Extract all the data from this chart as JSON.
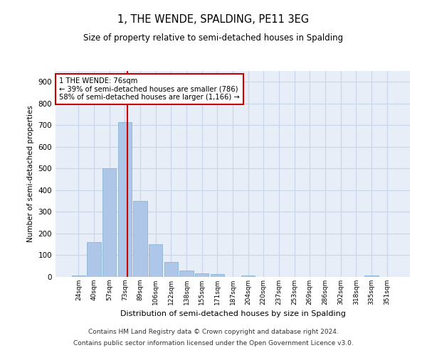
{
  "title": "1, THE WENDE, SPALDING, PE11 3EG",
  "subtitle": "Size of property relative to semi-detached houses in Spalding",
  "xlabel": "Distribution of semi-detached houses by size in Spalding",
  "ylabel": "Number of semi-detached properties",
  "bins": [
    "24sqm",
    "40sqm",
    "57sqm",
    "73sqm",
    "89sqm",
    "106sqm",
    "122sqm",
    "138sqm",
    "155sqm",
    "171sqm",
    "187sqm",
    "204sqm",
    "220sqm",
    "237sqm",
    "253sqm",
    "269sqm",
    "286sqm",
    "302sqm",
    "318sqm",
    "335sqm",
    "351sqm"
  ],
  "values": [
    8,
    160,
    500,
    715,
    350,
    150,
    70,
    28,
    18,
    13,
    0,
    8,
    0,
    0,
    0,
    0,
    0,
    0,
    0,
    8,
    0
  ],
  "bar_color": "#aec6e8",
  "bar_edge_color": "#7bafd4",
  "pct_smaller": 39,
  "n_smaller": 786,
  "pct_larger": 58,
  "n_larger": 1166,
  "vline_color": "#cc0000",
  "annotation_box_edge": "#cc0000",
  "ylim": [
    0,
    950
  ],
  "yticks": [
    0,
    100,
    200,
    300,
    400,
    500,
    600,
    700,
    800,
    900
  ],
  "grid_color": "#c8d4e8",
  "bg_color": "#e8eef8",
  "footnote1": "Contains HM Land Registry data © Crown copyright and database right 2024.",
  "footnote2": "Contains public sector information licensed under the Open Government Licence v3.0."
}
